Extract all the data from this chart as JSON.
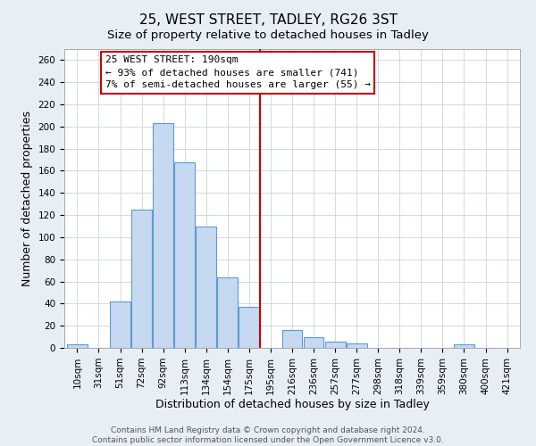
{
  "title": "25, WEST STREET, TADLEY, RG26 3ST",
  "subtitle": "Size of property relative to detached houses in Tadley",
  "xlabel": "Distribution of detached houses by size in Tadley",
  "ylabel": "Number of detached properties",
  "bar_labels": [
    "10sqm",
    "31sqm",
    "51sqm",
    "72sqm",
    "92sqm",
    "113sqm",
    "134sqm",
    "154sqm",
    "175sqm",
    "195sqm",
    "216sqm",
    "236sqm",
    "257sqm",
    "277sqm",
    "298sqm",
    "318sqm",
    "339sqm",
    "359sqm",
    "380sqm",
    "400sqm",
    "421sqm"
  ],
  "bar_values": [
    3,
    0,
    42,
    125,
    203,
    168,
    110,
    64,
    37,
    0,
    16,
    10,
    6,
    4,
    0,
    0,
    0,
    0,
    3,
    0,
    0
  ],
  "bar_color": "#c6d9f0",
  "bar_edge_color": "#5b9bd5",
  "vline_x": 8.5,
  "vline_color": "#cc0000",
  "annotation_title": "25 WEST STREET: 190sqm",
  "annotation_line1": "← 93% of detached houses are smaller (741)",
  "annotation_line2": "7% of semi-detached houses are larger (55) →",
  "annotation_box_edge": "#cc0000",
  "footer_line1": "Contains HM Land Registry data © Crown copyright and database right 2024.",
  "footer_line2": "Contains public sector information licensed under the Open Government Licence v3.0.",
  "ylim": [
    0,
    270
  ],
  "yticks": [
    0,
    20,
    40,
    60,
    80,
    100,
    120,
    140,
    160,
    180,
    200,
    220,
    240,
    260
  ],
  "background_color": "#e8eef5",
  "plot_background": "#ffffff",
  "title_fontsize": 11,
  "axis_label_fontsize": 9,
  "tick_fontsize": 7.5,
  "footer_fontsize": 6.5,
  "annotation_fontsize": 8
}
